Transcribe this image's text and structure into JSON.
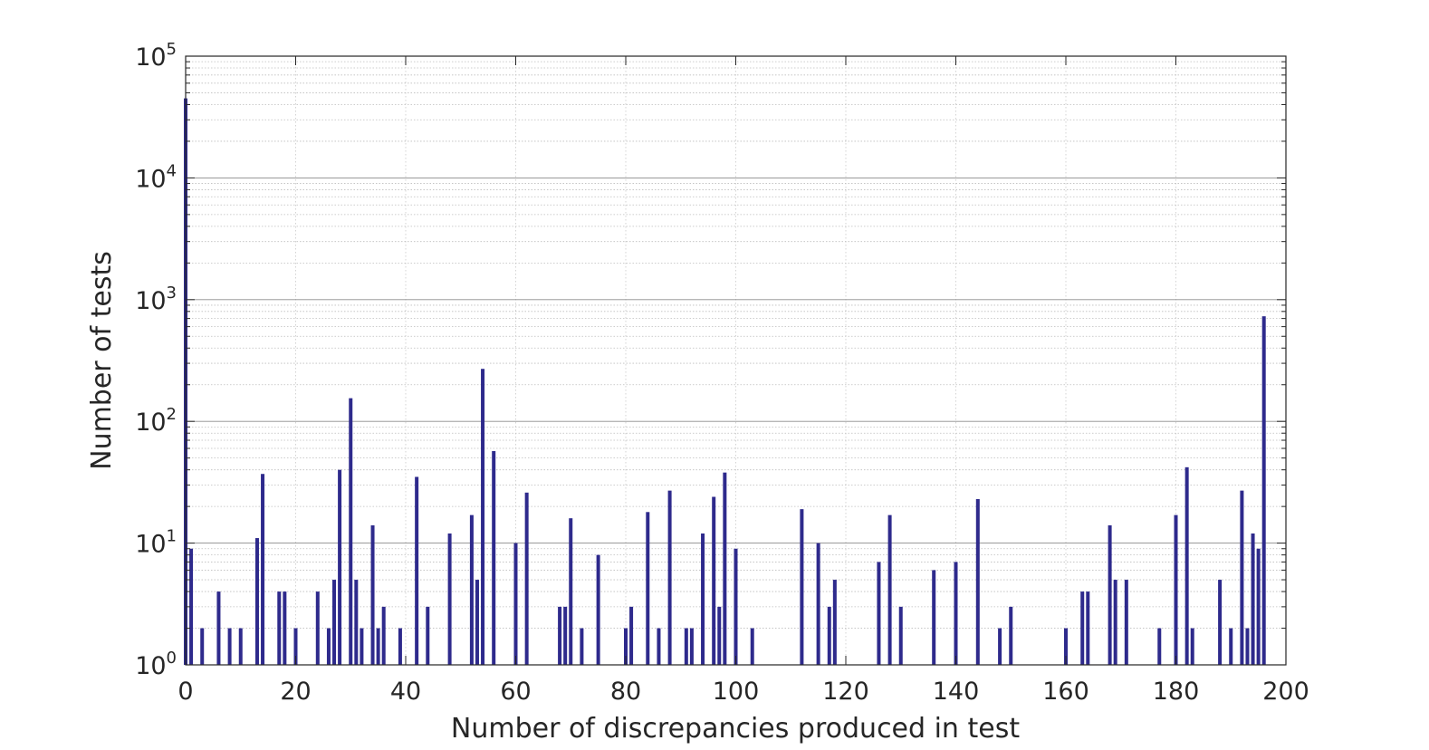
{
  "chart_data": {
    "type": "bar",
    "title": "",
    "xlabel": "Number of discrepancies produced in test",
    "ylabel": "Number of tests",
    "xlim": [
      0,
      200
    ],
    "ylim": [
      1,
      100000
    ],
    "yscale": "log",
    "grid": true,
    "bar_color": "#2e2a8c",
    "x_ticks": [
      "0",
      "20",
      "40",
      "60",
      "80",
      "100",
      "120",
      "140",
      "160",
      "180",
      "200"
    ],
    "y_ticks": [
      {
        "base": "10",
        "exp": "0"
      },
      {
        "base": "10",
        "exp": "1"
      },
      {
        "base": "10",
        "exp": "2"
      },
      {
        "base": "10",
        "exp": "3"
      },
      {
        "base": "10",
        "exp": "4"
      },
      {
        "base": "10",
        "exp": "5"
      }
    ],
    "x": [
      0,
      1,
      3,
      6,
      8,
      10,
      13,
      14,
      17,
      18,
      20,
      24,
      26,
      27,
      28,
      30,
      31,
      32,
      34,
      35,
      36,
      39,
      42,
      44,
      48,
      52,
      53,
      54,
      56,
      60,
      62,
      68,
      69,
      70,
      72,
      75,
      80,
      81,
      84,
      86,
      88,
      91,
      92,
      94,
      96,
      97,
      98,
      100,
      103,
      112,
      115,
      117,
      118,
      126,
      128,
      130,
      136,
      140,
      144,
      148,
      150,
      160,
      163,
      164,
      168,
      169,
      171,
      177,
      180,
      182,
      183,
      188,
      190,
      192,
      193,
      194,
      195,
      196
    ],
    "values": [
      45000,
      9,
      2,
      4,
      2,
      2,
      11,
      37,
      4,
      4,
      2,
      4,
      2,
      5,
      40,
      155,
      5,
      2,
      14,
      2,
      3,
      2,
      35,
      3,
      12,
      17,
      5,
      270,
      57,
      10,
      26,
      3,
      3,
      16,
      2,
      8,
      2,
      3,
      18,
      2,
      27,
      2,
      2,
      12,
      24,
      3,
      38,
      9,
      2,
      19,
      10,
      3,
      5,
      7,
      17,
      3,
      6,
      7,
      23,
      2,
      3,
      2,
      4,
      4,
      14,
      5,
      5,
      2,
      17,
      42,
      2,
      5,
      2,
      27,
      2,
      12,
      9,
      730
    ]
  }
}
